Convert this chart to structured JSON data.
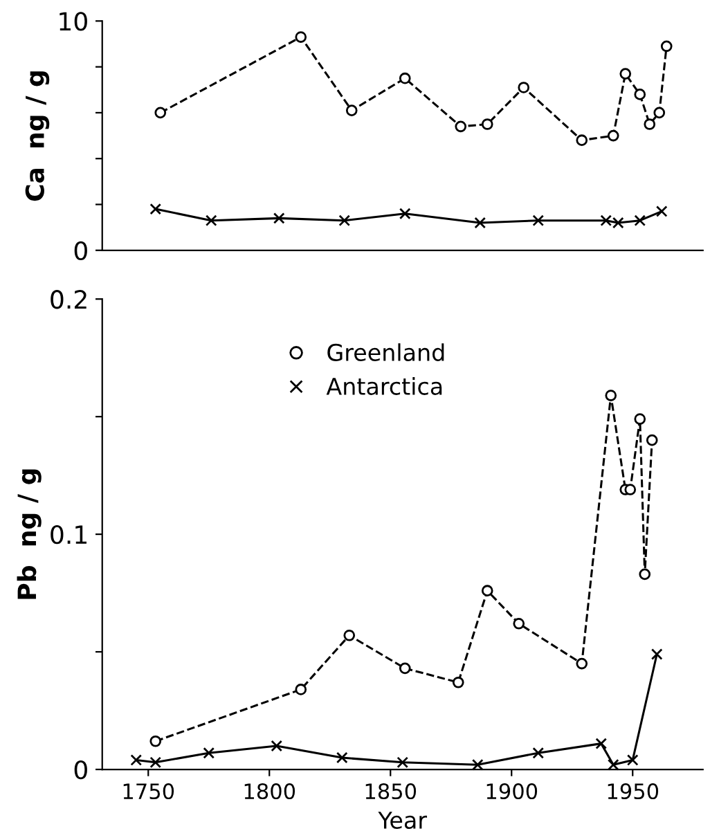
{
  "chart_data": [
    {
      "type": "line",
      "ylabel": "Ca  ng / g",
      "xlim": [
        1731,
        1979
      ],
      "ylim": [
        0,
        10
      ],
      "yticks": [
        0,
        {
          "value": 2,
          "label": null
        },
        {
          "value": 4,
          "label": null
        },
        {
          "value": 6,
          "label": null
        },
        {
          "value": 8,
          "label": null
        },
        10
      ],
      "tick_labels": "y",
      "grid": false,
      "series": [
        {
          "color": "#000000",
          "marker": "circle",
          "line_style": "dashed",
          "x": [
            1755,
            1813,
            1834,
            1856,
            1879,
            1890,
            1905,
            1929,
            1942,
            1947,
            1953,
            1957,
            1961,
            1964
          ],
          "values": [
            6.0,
            9.3,
            6.1,
            7.5,
            5.4,
            5.5,
            7.1,
            4.8,
            5.0,
            7.7,
            6.8,
            5.5,
            6.0,
            8.9
          ]
        },
        {
          "color": "#000000",
          "marker": "cross",
          "line_style": "solid",
          "x": [
            1753,
            1776,
            1804,
            1831,
            1856,
            1887,
            1911,
            1939,
            1944,
            1953,
            1962
          ],
          "values": [
            1.8,
            1.3,
            1.4,
            1.3,
            1.6,
            1.2,
            1.3,
            1.3,
            1.2,
            1.3,
            1.7
          ]
        }
      ]
    },
    {
      "type": "line",
      "ylabel": "Pb  ng / g",
      "xlabel": "Year",
      "xlim": [
        1731,
        1979
      ],
      "ylim": [
        0,
        0.2
      ],
      "xticks": [
        1750,
        1800,
        1850,
        1900,
        1950
      ],
      "yticks": [
        0,
        {
          "value": 0.05,
          "label": null
        },
        0.1,
        {
          "value": 0.15,
          "label": null
        },
        0.2
      ],
      "grid": false,
      "legend": "top left",
      "series": [
        {
          "name": "Greenland",
          "color": "#000000",
          "marker": "circle",
          "line_style": "dashed",
          "x": [
            1753,
            1813,
            1833,
            1856,
            1878,
            1890,
            1903,
            1929,
            1941,
            1947,
            1949,
            1953,
            1955,
            1958
          ],
          "values": [
            0.012,
            0.034,
            0.057,
            0.043,
            0.037,
            0.076,
            0.062,
            0.045,
            0.159,
            0.119,
            0.119,
            0.149,
            0.083,
            0.14
          ]
        },
        {
          "name": "Antarctica",
          "color": "#000000",
          "marker": "cross",
          "line_style": "solid",
          "x": [
            1745,
            1753,
            1775,
            1803,
            1830,
            1855,
            1886,
            1911,
            1937,
            1942,
            1950,
            1960
          ],
          "values": [
            0.004,
            0.003,
            0.007,
            0.01,
            0.005,
            0.003,
            0.002,
            0.007,
            0.011,
            0.002,
            0.004,
            0.049
          ]
        }
      ]
    }
  ]
}
